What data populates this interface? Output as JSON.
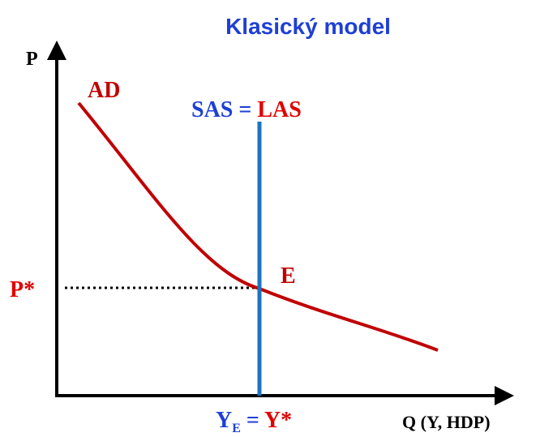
{
  "title": "Klasický model",
  "axes": {
    "y_label": "P",
    "x_label": "Q (Y, HDP)"
  },
  "curves": {
    "ad_label": "AD",
    "supply_label": {
      "sas": "SAS",
      "equals": "=",
      "las": "LAS"
    }
  },
  "equilibrium": {
    "point_label": "E",
    "price_label": "P*",
    "quantity_label": {
      "y": "Y",
      "subscript": "E",
      "equals": "=",
      "y_star": "Y*"
    }
  }
}
